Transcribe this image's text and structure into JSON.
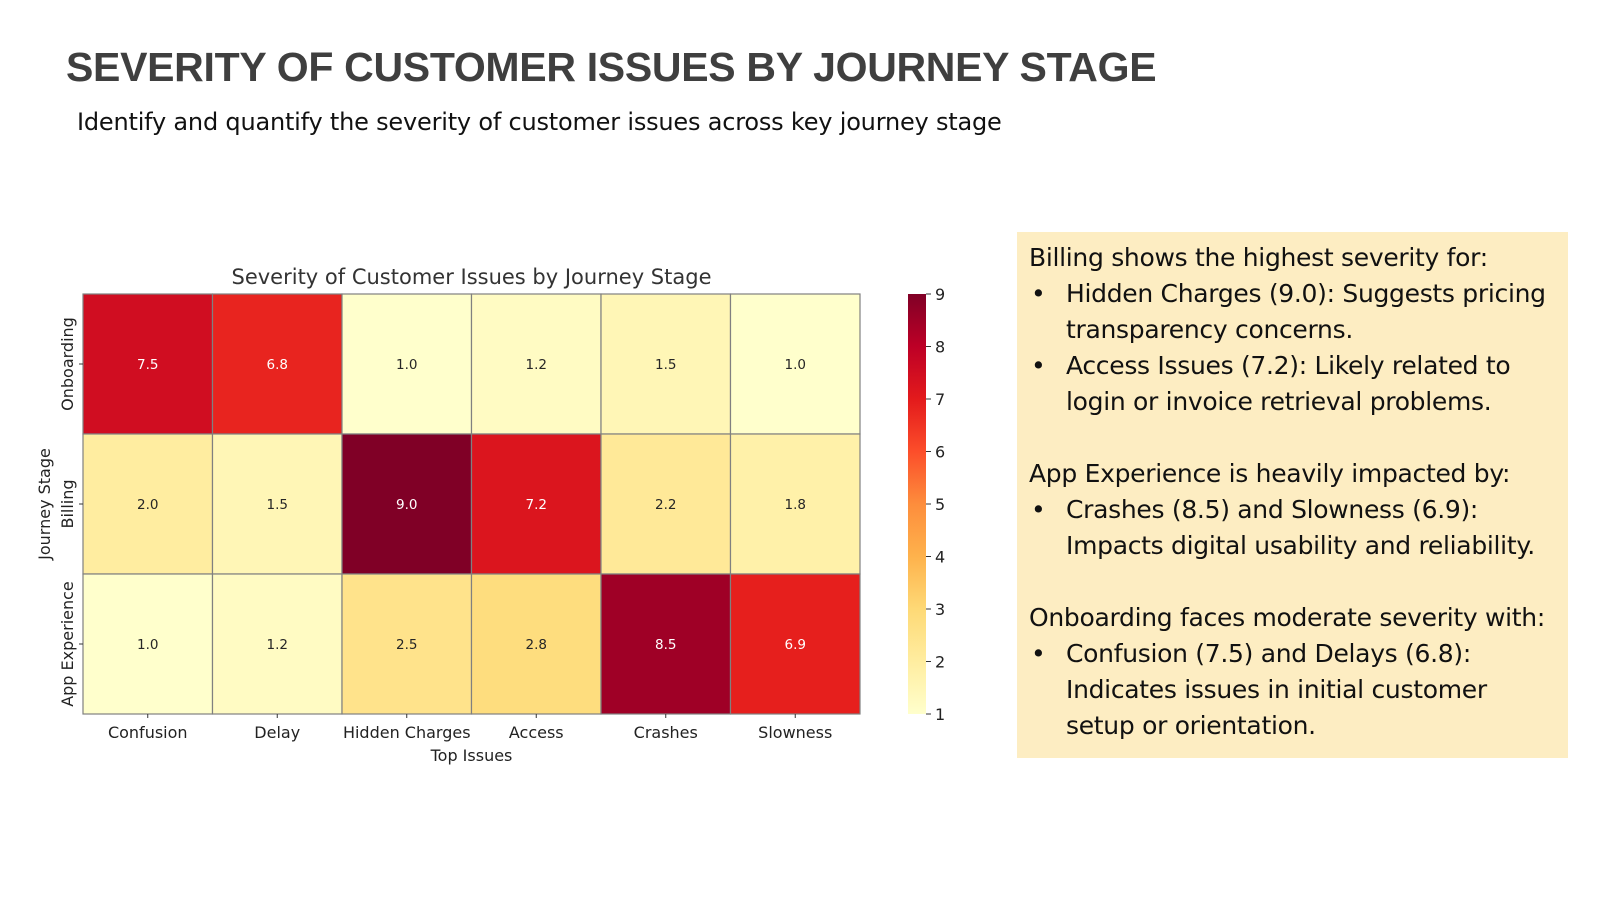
{
  "page": {
    "title": "SEVERITY OF CUSTOMER ISSUES BY JOURNEY STAGE",
    "subtitle": "Identify and quantify the severity of customer issues across key journey stage"
  },
  "chart_data": {
    "type": "heatmap",
    "title": "Severity of Customer Issues by Journey Stage",
    "xlabel": "Top Issues",
    "ylabel": "Journey Stage",
    "x_categories": [
      "Confusion",
      "Delay",
      "Hidden Charges",
      "Access",
      "Crashes",
      "Slowness"
    ],
    "y_categories": [
      "Onboarding",
      "Billing",
      "App Experience"
    ],
    "values": [
      [
        7.5,
        6.8,
        1.0,
        1.2,
        1.5,
        1.0
      ],
      [
        2.0,
        1.5,
        9.0,
        7.2,
        2.2,
        1.8
      ],
      [
        1.0,
        1.2,
        2.5,
        2.8,
        8.5,
        6.9
      ]
    ],
    "colormap": "YlOrRd",
    "colorbar": {
      "min": 1,
      "max": 9,
      "ticks": [
        1,
        2,
        3,
        4,
        5,
        6,
        7,
        8,
        9
      ]
    },
    "annotate": true
  },
  "notes": {
    "sections": [
      {
        "heading": "Billing shows the highest severity for:",
        "items": [
          "Hidden Charges (9.0): Suggests pricing transparency concerns.",
          "Access Issues (7.2): Likely related to login or invoice retrieval problems."
        ]
      },
      {
        "heading": "App Experience is heavily impacted by:",
        "items": [
          "Crashes (8.5) and Slowness (6.9): Impacts digital usability and reliability."
        ]
      },
      {
        "heading": "Onboarding faces moderate severity with:",
        "items": [
          "Confusion (7.5) and Delays (6.8): Indicates issues in initial customer setup or orientation."
        ]
      }
    ]
  }
}
